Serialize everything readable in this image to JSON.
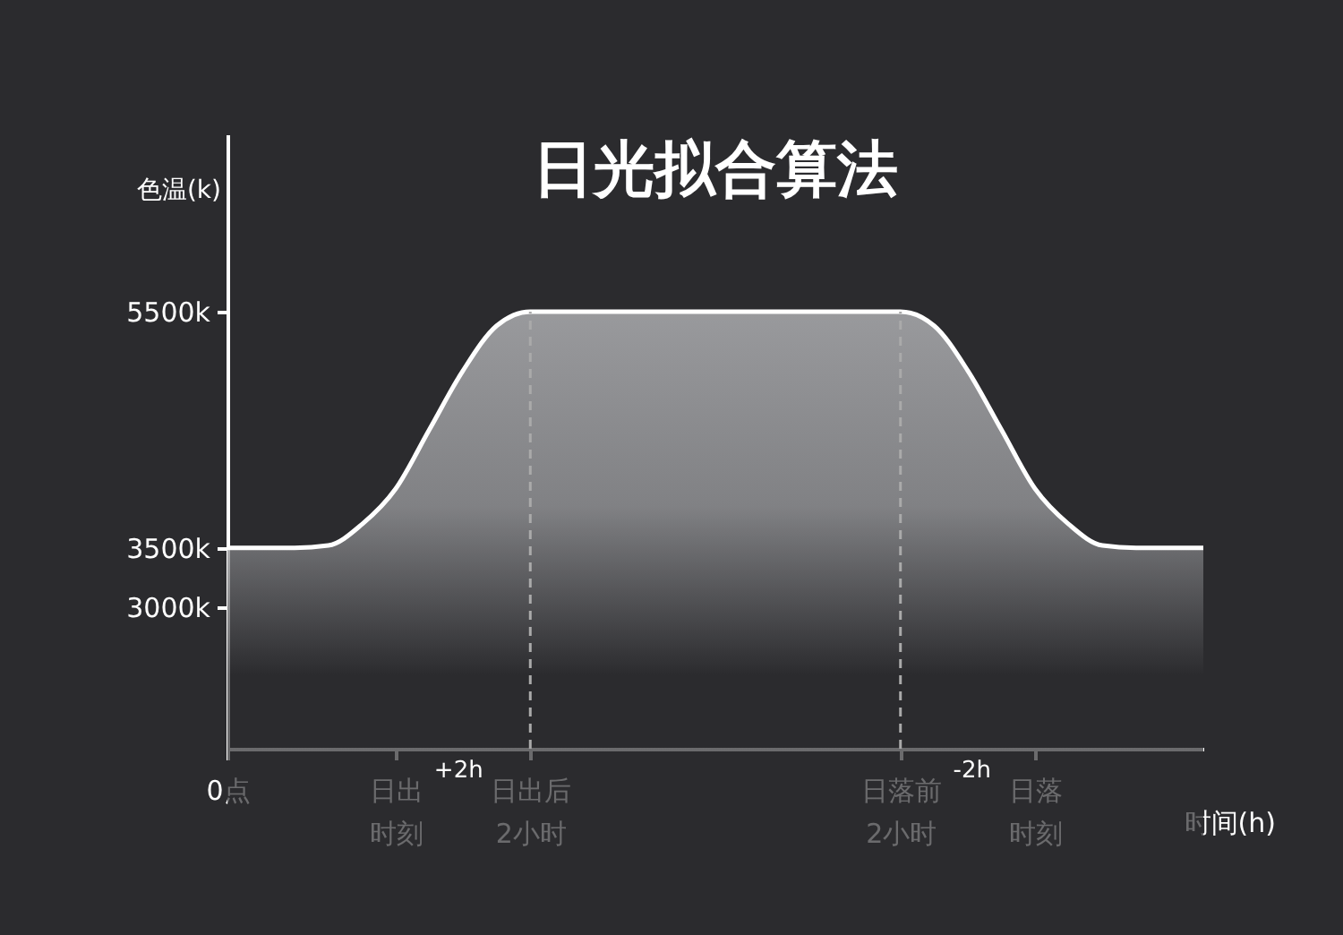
{
  "chart_data": {
    "type": "area",
    "title": "日光拟合算法",
    "xlabel": "时间(h)",
    "ylabel": "色温(k)",
    "categories": [
      "0点",
      null,
      null,
      null,
      null,
      "日出时刻",
      null,
      null,
      null,
      "日出后2小时",
      null,
      null,
      null,
      null,
      null,
      null,
      null,
      null,
      null,
      null,
      "日落前2小时",
      null,
      null,
      null,
      "日落时刻",
      null,
      null,
      null,
      null,
      null
    ],
    "series": [
      {
        "color": "#ffffff",
        "values": [
          3500,
          3500,
          3500,
          3520,
          3700,
          4000,
          4500,
          5000,
          5380,
          5500,
          5500,
          5500,
          5500,
          5500,
          5500,
          5500,
          5500,
          5500,
          5500,
          5500,
          5500,
          5380,
          5000,
          4500,
          4000,
          3700,
          3520,
          3500,
          3500,
          3500
        ]
      }
    ],
    "ylim": [
      1800,
      7000
    ],
    "yticks": [
      {
        "value": 3000,
        "label": "3000k"
      },
      {
        "value": 3500,
        "label": "3500k"
      },
      {
        "value": 5500,
        "label": "5500k"
      }
    ],
    "ref_lines": [
      {
        "axis": "x",
        "value": "日出后2小时",
        "line_style": "dashed",
        "color": "#aaaaaa"
      },
      {
        "axis": "x",
        "value": "日落前2小时",
        "line_style": "dashed",
        "color": "#aaaaaa"
      }
    ],
    "annotations": [
      "+2h",
      "-2h"
    ],
    "grid": false
  }
}
